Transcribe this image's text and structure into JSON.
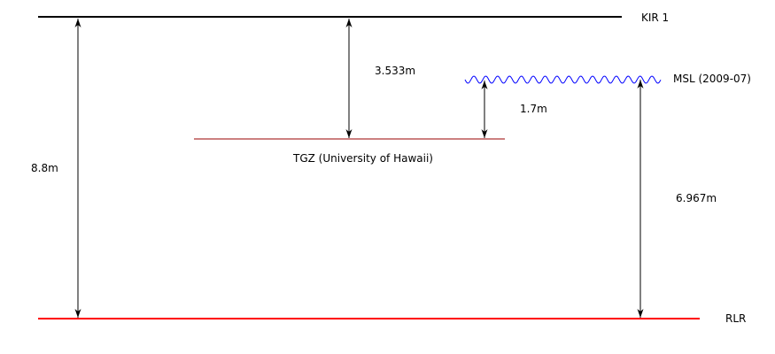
{
  "datums": {
    "kir1": {
      "label": "KIR 1",
      "color": "#000000"
    },
    "msl": {
      "label": "MSL (2009-07)",
      "color": "#0000ff"
    },
    "tgz": {
      "label": "TGZ (University of Hawaii)",
      "color": "#990000"
    },
    "rlr": {
      "label": "RLR",
      "color": "#ff0000"
    }
  },
  "measurements": {
    "kir1_to_rlr": "8.8m",
    "kir1_to_tgz": "3.533m",
    "msl_to_tgz": "1.7m",
    "msl_to_rlr": "6.967m"
  }
}
